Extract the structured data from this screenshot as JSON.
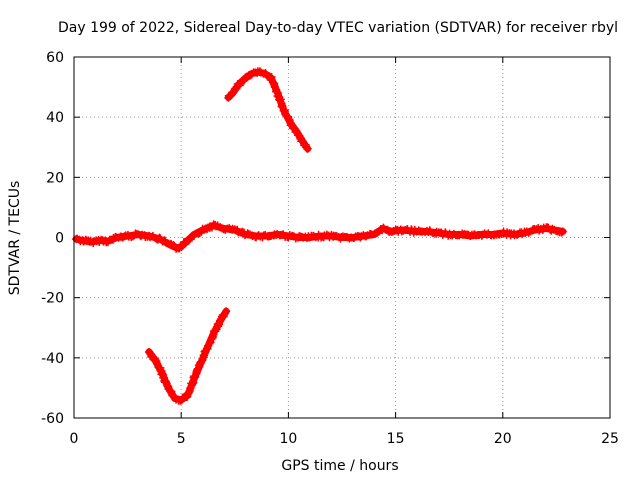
{
  "chart_data": {
    "type": "scatter",
    "title": "Day 199 of 2022, Sidereal Day-to-day VTEC variation (SDTVAR) for receiver rbyl",
    "xlabel": "GPS time / hours",
    "ylabel": "SDTVAR / TECUs",
    "xlim": [
      0,
      25
    ],
    "ylim": [
      -60,
      60
    ],
    "x_ticks": [
      0,
      5,
      10,
      15,
      20,
      25
    ],
    "x_tick_labels": [
      "0",
      "5",
      "10",
      "15",
      "20",
      "25"
    ],
    "y_ticks": [
      -60,
      -40,
      -20,
      0,
      20,
      40,
      60
    ],
    "y_tick_labels": [
      "-60",
      "-40",
      "-20",
      "0",
      "20",
      "40",
      "60"
    ],
    "grid": true,
    "marker": "plus",
    "color": "#ff0000",
    "series": [
      {
        "name": "baseline",
        "points": [
          [
            0.1,
            -0.5
          ],
          [
            0.4,
            -1
          ],
          [
            0.8,
            -1.5
          ],
          [
            1.2,
            -1
          ],
          [
            1.6,
            -1.2
          ],
          [
            2.0,
            0
          ],
          [
            2.5,
            0.5
          ],
          [
            3.0,
            1
          ],
          [
            3.5,
            0.5
          ],
          [
            4.0,
            -0.5
          ],
          [
            4.5,
            -2.5
          ],
          [
            4.8,
            -3.5
          ],
          [
            5.0,
            -3
          ],
          [
            5.3,
            -1
          ],
          [
            5.6,
            1
          ],
          [
            6.0,
            2.5
          ],
          [
            6.5,
            4
          ],
          [
            7.0,
            3
          ],
          [
            7.5,
            2.5
          ],
          [
            8.0,
            1
          ],
          [
            8.5,
            0.5
          ],
          [
            9.0,
            0.5
          ],
          [
            9.5,
            1
          ],
          [
            10.0,
            0.5
          ],
          [
            10.5,
            0
          ],
          [
            11.0,
            0
          ],
          [
            11.5,
            0.5
          ],
          [
            12.0,
            0.5
          ],
          [
            12.5,
            0
          ],
          [
            13.0,
            0
          ],
          [
            13.5,
            0.5
          ],
          [
            14.0,
            1
          ],
          [
            14.4,
            3
          ],
          [
            14.8,
            2
          ],
          [
            15.3,
            2.5
          ],
          [
            16.0,
            2
          ],
          [
            16.5,
            2
          ],
          [
            17.0,
            1.5
          ],
          [
            17.5,
            1
          ],
          [
            18.0,
            1
          ],
          [
            18.5,
            0.5
          ],
          [
            19.0,
            1
          ],
          [
            19.5,
            1
          ],
          [
            20.0,
            1.5
          ],
          [
            20.5,
            1
          ],
          [
            21.0,
            1.5
          ],
          [
            21.5,
            2.5
          ],
          [
            22.0,
            3
          ],
          [
            22.4,
            2.5
          ],
          [
            22.8,
            2
          ]
        ]
      },
      {
        "name": "upper-arc",
        "points": [
          [
            7.2,
            46.5
          ],
          [
            7.4,
            48
          ],
          [
            7.7,
            51
          ],
          [
            8.0,
            53
          ],
          [
            8.3,
            54.5
          ],
          [
            8.6,
            55
          ],
          [
            8.9,
            54.5
          ],
          [
            9.2,
            53
          ],
          [
            9.5,
            48
          ],
          [
            9.8,
            42
          ],
          [
            10.1,
            38
          ],
          [
            10.4,
            35
          ],
          [
            10.7,
            31.5
          ],
          [
            10.9,
            29.5
          ]
        ]
      },
      {
        "name": "lower-arc",
        "points": [
          [
            3.5,
            -38
          ],
          [
            3.8,
            -41
          ],
          [
            4.1,
            -45
          ],
          [
            4.4,
            -50
          ],
          [
            4.7,
            -53.5
          ],
          [
            5.0,
            -54
          ],
          [
            5.3,
            -52.5
          ],
          [
            5.6,
            -47
          ],
          [
            5.9,
            -42
          ],
          [
            6.2,
            -37
          ],
          [
            6.5,
            -32
          ],
          [
            6.8,
            -28
          ],
          [
            7.1,
            -24.5
          ]
        ]
      }
    ]
  }
}
